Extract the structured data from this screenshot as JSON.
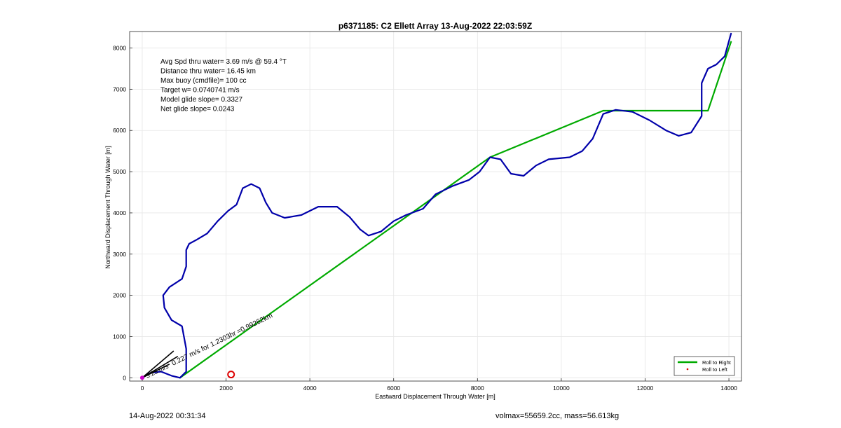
{
  "chart_data": {
    "type": "line",
    "title": "p6371185: C2 Ellett Array 13-Aug-2022 22:03:59Z",
    "xlabel": "Eastward Displacement Through Water [m]",
    "ylabel": "Northward Displacement Through Water [m]",
    "xlim": [
      -300,
      14300
    ],
    "ylim": [
      -80,
      8400
    ],
    "xticks": [
      0,
      2000,
      4000,
      6000,
      8000,
      10000,
      12000,
      14000
    ],
    "yticks": [
      0,
      1000,
      2000,
      3000,
      4000,
      5000,
      6000,
      7000,
      8000
    ],
    "grid": true,
    "legend_position": "bottom-right",
    "legend": [
      {
        "label": "Roll to Right",
        "color": "#00aa00",
        "style": "line"
      },
      {
        "label": "Roll to Left",
        "color": "#dd0000",
        "style": "dot"
      }
    ],
    "annotations": [
      "Avg Spd thru water=  3.69 m/s @  59.4 °T",
      "Distance thru water= 16.45 km",
      "Max buoy (cmdfile)= 100 cc",
      "Target w= 0.0740741 m/s",
      "Model glide slope= 0.3327",
      "Net glide slope= 0.0243"
    ],
    "rotated_annotation": "0.227 m/s for 1.2303hr =0.99262km",
    "rotated_annotation_2": "3.23 m/s",
    "series": [
      {
        "name": "Roll to Right",
        "color": "#00aa00",
        "kind": "green",
        "x": [
          900,
          8300,
          11000,
          12500,
          13500,
          14050
        ],
        "y": [
          0,
          5350,
          6480,
          6480,
          6480,
          8150
        ]
      },
      {
        "color": "#0000aa",
        "kind": "blue",
        "x": [
          0,
          200,
          450,
          700,
          900,
          1050,
          1050,
          950,
          700,
          530,
          500,
          650,
          950,
          1050,
          1050,
          1120,
          1300,
          1550,
          1800,
          2050,
          2250,
          2400,
          2600,
          2800,
          2950,
          3100,
          3400,
          3800,
          4200,
          4650,
          4950,
          5200,
          5400,
          5700,
          6000,
          6300,
          6700,
          7000,
          7400,
          7800,
          8050,
          8300,
          8550,
          8800,
          9100,
          9400,
          9700,
          10200,
          10500,
          10750,
          11000,
          11300,
          11700,
          12100,
          12500,
          12800,
          13100,
          13350,
          13350,
          13500,
          13700,
          13900,
          14050
        ],
        "y": [
          0,
          120,
          150,
          50,
          0,
          150,
          700,
          1250,
          1400,
          1700,
          2000,
          2200,
          2400,
          2700,
          3100,
          3250,
          3350,
          3500,
          3800,
          4050,
          4200,
          4600,
          4700,
          4600,
          4250,
          4000,
          3880,
          3950,
          4150,
          4150,
          3900,
          3600,
          3450,
          3550,
          3800,
          3950,
          4100,
          4450,
          4650,
          4800,
          5000,
          5350,
          5300,
          4950,
          4900,
          5150,
          5300,
          5350,
          5500,
          5800,
          6400,
          6500,
          6450,
          6250,
          6000,
          5870,
          5950,
          6350,
          7150,
          7500,
          7600,
          7800,
          8350
        ]
      },
      {
        "color": "#000000",
        "kind": "black",
        "x": [
          0,
          750,
          0,
          850,
          0,
          650
        ],
        "y": [
          0,
          650,
          0,
          520,
          0,
          330
        ]
      }
    ],
    "markers": [
      {
        "label": "start",
        "color": "#cc00cc",
        "x": 0,
        "y": 0
      },
      {
        "label": "end",
        "color": "#dd0000",
        "x": 2120,
        "y": 80
      }
    ]
  },
  "footer": {
    "left": "14-Aug-2022 00:31:34",
    "right": "volmax=55659.2cc, mass=56.613kg"
  }
}
